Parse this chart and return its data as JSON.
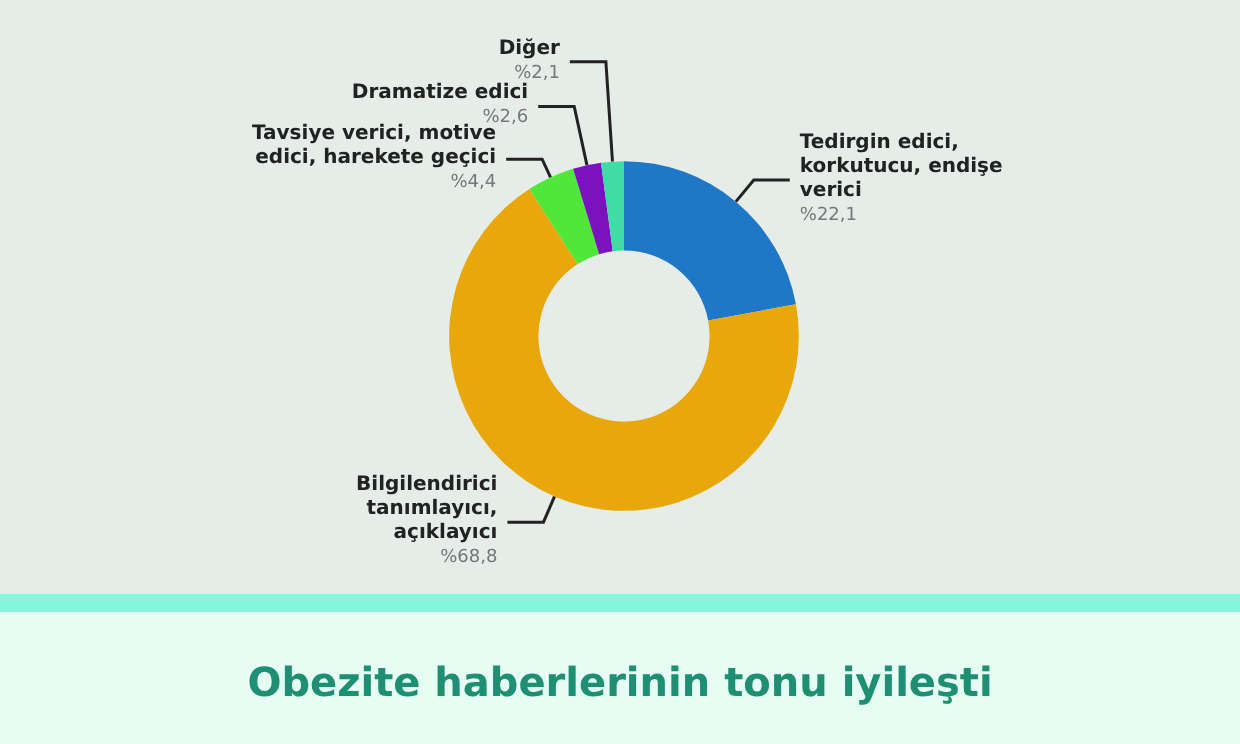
{
  "chart_data": {
    "type": "donut",
    "title": "Obezite haberlerinin tonu iyileşti",
    "categories": [
      "Tedirgin edici, korkutucu, endişe verici",
      "Bilgilendirici tanımlayıcı, açıklayıcı",
      "Tavsiye verici, motive edici, harekete geçici",
      "Dramatize edici",
      "Diğer"
    ],
    "values": [
      22.1,
      68.8,
      4.4,
      2.6,
      2.1
    ],
    "colors": [
      "#1f77c8",
      "#e8a80c",
      "#4fe83a",
      "#7a12c0",
      "#3fdca6"
    ],
    "value_labels": [
      "%22,1",
      "%68,8",
      "%4,4",
      "%2,6",
      "%2,1"
    ],
    "legend": false
  }
}
